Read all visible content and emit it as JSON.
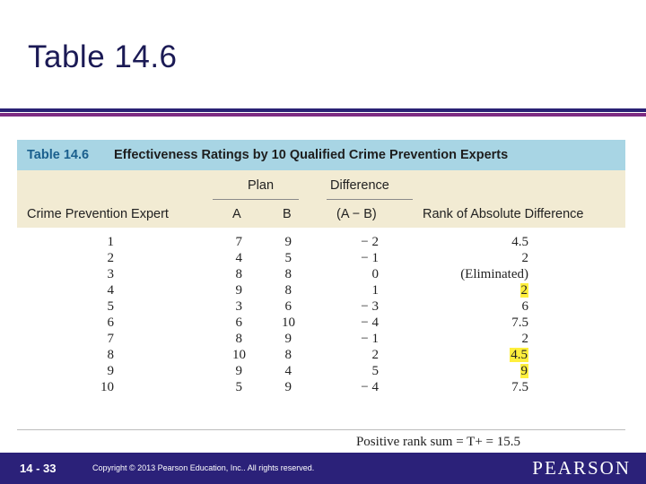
{
  "slide": {
    "title": "Table 14.6",
    "page_number": "14 - 33",
    "copyright": "Copyright © 2013 Pearson Education, Inc.. All rights reserved.",
    "logo_text": "PEARSON"
  },
  "table": {
    "number": "Table 14.6",
    "caption": "Effectiveness Ratings by 10 Qualified Crime Prevention Experts",
    "headers": {
      "plan": "Plan",
      "difference": "Difference",
      "expert": "Crime Prevention Expert",
      "a": "A",
      "b": "B",
      "a_minus_b": "(A − B)",
      "rank": "Rank of Absolute Difference"
    },
    "rows": [
      {
        "expert": "1",
        "a": "7",
        "b": "9",
        "diff": "− 2",
        "rank": "4.5",
        "highlight": false
      },
      {
        "expert": "2",
        "a": "4",
        "b": "5",
        "diff": "− 1",
        "rank": "2",
        "highlight": false
      },
      {
        "expert": "3",
        "a": "8",
        "b": "8",
        "diff": "0",
        "rank": "(Eliminated)",
        "highlight": false
      },
      {
        "expert": "4",
        "a": "9",
        "b": "8",
        "diff": "1",
        "rank": "2",
        "highlight": true
      },
      {
        "expert": "5",
        "a": "3",
        "b": "6",
        "diff": "− 3",
        "rank": "6",
        "highlight": false
      },
      {
        "expert": "6",
        "a": "6",
        "b": "10",
        "diff": "− 4",
        "rank": "7.5",
        "highlight": false
      },
      {
        "expert": "7",
        "a": "8",
        "b": "9",
        "diff": "− 1",
        "rank": "2",
        "highlight": false
      },
      {
        "expert": "8",
        "a": "10",
        "b": "8",
        "diff": "2",
        "rank": "4.5",
        "highlight": true
      },
      {
        "expert": "9",
        "a": "9",
        "b": "4",
        "diff": "5",
        "rank": "9",
        "highlight": true
      },
      {
        "expert": "10",
        "a": "5",
        "b": "9",
        "diff": "− 4",
        "rank": "7.5",
        "highlight": false
      }
    ],
    "footer": "Positive rank sum = T+ = 15.5"
  },
  "colors": {
    "title": "#1b1a55",
    "rule_dark": "#2a2174",
    "rule_purple": "#7d2b82",
    "table_header": "#a8d5e4",
    "column_header": "#f2ebd3",
    "highlight": "#ffef3d",
    "footer_bar": "#2b2179"
  }
}
